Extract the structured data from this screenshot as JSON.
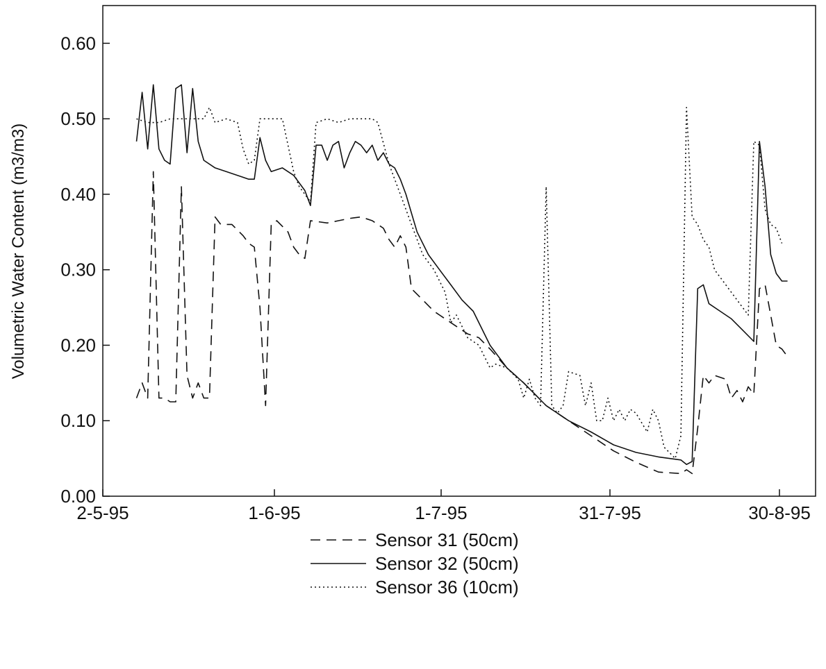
{
  "chart_data": {
    "type": "line",
    "title": "",
    "xlabel": "",
    "ylabel": "Volumetric Water Content (m3/m3)",
    "x_ticks": [
      "2-5-95",
      "1-6-95",
      "1-7-95",
      "31-7-95",
      "30-8-95"
    ],
    "y_ticks": [
      "0.00",
      "0.10",
      "0.20",
      "0.30",
      "0.40",
      "0.50",
      "0.60"
    ],
    "xlim": [
      "1995-05-02",
      "1995-09-06"
    ],
    "ylim": [
      0,
      0.65
    ],
    "grid": false,
    "legend_position": "bottom-center",
    "series": [
      {
        "name": "Sensor 31 (50cm)",
        "style": "dashed",
        "points": [
          [
            "1995-05-08",
            0.13
          ],
          [
            "1995-05-09",
            0.15
          ],
          [
            "1995-05-10",
            0.13
          ],
          [
            "1995-05-11",
            0.43
          ],
          [
            "1995-05-12",
            0.13
          ],
          [
            "1995-05-13",
            0.13
          ],
          [
            "1995-05-14",
            0.125
          ],
          [
            "1995-05-15",
            0.125
          ],
          [
            "1995-05-16",
            0.41
          ],
          [
            "1995-05-17",
            0.16
          ],
          [
            "1995-05-18",
            0.13
          ],
          [
            "1995-05-19",
            0.15
          ],
          [
            "1995-05-20",
            0.13
          ],
          [
            "1995-05-21",
            0.13
          ],
          [
            "1995-05-22",
            0.37
          ],
          [
            "1995-05-23",
            0.36
          ],
          [
            "1995-05-25",
            0.36
          ],
          [
            "1995-05-27",
            0.345
          ],
          [
            "1995-05-28",
            0.335
          ],
          [
            "1995-05-29",
            0.33
          ],
          [
            "1995-05-30",
            0.25
          ],
          [
            "1995-05-31",
            0.12
          ],
          [
            "1995-06-01",
            0.36
          ],
          [
            "1995-06-02",
            0.365
          ],
          [
            "1995-06-04",
            0.35
          ],
          [
            "1995-06-05",
            0.33
          ],
          [
            "1995-06-06",
            0.32
          ],
          [
            "1995-06-07",
            0.315
          ],
          [
            "1995-06-08",
            0.365
          ],
          [
            "1995-06-11",
            0.362
          ],
          [
            "1995-06-13",
            0.365
          ],
          [
            "1995-06-15",
            0.368
          ],
          [
            "1995-06-17",
            0.37
          ],
          [
            "1995-06-19",
            0.365
          ],
          [
            "1995-06-21",
            0.355
          ],
          [
            "1995-06-22",
            0.34
          ],
          [
            "1995-06-23",
            0.33
          ],
          [
            "1995-06-24",
            0.345
          ],
          [
            "1995-06-25",
            0.33
          ],
          [
            "1995-06-26",
            0.275
          ],
          [
            "1995-06-28",
            0.26
          ],
          [
            "1995-06-30",
            0.245
          ],
          [
            "1995-07-02",
            0.235
          ],
          [
            "1995-07-04",
            0.225
          ],
          [
            "1995-07-06",
            0.215
          ],
          [
            "1995-07-08",
            0.21
          ],
          [
            "1995-07-10",
            0.195
          ],
          [
            "1995-07-13",
            0.17
          ],
          [
            "1995-07-16",
            0.15
          ],
          [
            "1995-07-20",
            0.12
          ],
          [
            "1995-07-24",
            0.1
          ],
          [
            "1995-07-28",
            0.08
          ],
          [
            "1995-08-01",
            0.06
          ],
          [
            "1995-08-05",
            0.045
          ],
          [
            "1995-08-09",
            0.032
          ],
          [
            "1995-08-13",
            0.03
          ],
          [
            "1995-08-14",
            0.035
          ],
          [
            "1995-08-15",
            0.03
          ],
          [
            "1995-08-16",
            0.09
          ],
          [
            "1995-08-17",
            0.16
          ],
          [
            "1995-08-18",
            0.15
          ],
          [
            "1995-08-19",
            0.16
          ],
          [
            "1995-08-21",
            0.155
          ],
          [
            "1995-08-22",
            0.13
          ],
          [
            "1995-08-23",
            0.14
          ],
          [
            "1995-08-24",
            0.125
          ],
          [
            "1995-08-25",
            0.145
          ],
          [
            "1995-08-26",
            0.135
          ],
          [
            "1995-08-27",
            0.275
          ],
          [
            "1995-08-28",
            0.28
          ],
          [
            "1995-08-29",
            0.24
          ],
          [
            "1995-08-30",
            0.2
          ],
          [
            "1995-08-31",
            0.195
          ],
          [
            "1995-09-01",
            0.185
          ]
        ]
      },
      {
        "name": "Sensor 32 (50cm)",
        "style": "solid",
        "points": [
          [
            "1995-05-08",
            0.47
          ],
          [
            "1995-05-09",
            0.535
          ],
          [
            "1995-05-10",
            0.46
          ],
          [
            "1995-05-11",
            0.545
          ],
          [
            "1995-05-12",
            0.46
          ],
          [
            "1995-05-13",
            0.445
          ],
          [
            "1995-05-14",
            0.44
          ],
          [
            "1995-05-15",
            0.54
          ],
          [
            "1995-05-16",
            0.545
          ],
          [
            "1995-05-17",
            0.455
          ],
          [
            "1995-05-18",
            0.54
          ],
          [
            "1995-05-19",
            0.47
          ],
          [
            "1995-05-20",
            0.445
          ],
          [
            "1995-05-22",
            0.435
          ],
          [
            "1995-05-24",
            0.43
          ],
          [
            "1995-05-26",
            0.425
          ],
          [
            "1995-05-28",
            0.42
          ],
          [
            "1995-05-29",
            0.42
          ],
          [
            "1995-05-30",
            0.475
          ],
          [
            "1995-05-31",
            0.445
          ],
          [
            "1995-06-01",
            0.43
          ],
          [
            "1995-06-03",
            0.435
          ],
          [
            "1995-06-05",
            0.425
          ],
          [
            "1995-06-07",
            0.405
          ],
          [
            "1995-06-08",
            0.385
          ],
          [
            "1995-06-09",
            0.465
          ],
          [
            "1995-06-10",
            0.465
          ],
          [
            "1995-06-11",
            0.445
          ],
          [
            "1995-06-12",
            0.465
          ],
          [
            "1995-06-13",
            0.47
          ],
          [
            "1995-06-14",
            0.435
          ],
          [
            "1995-06-15",
            0.455
          ],
          [
            "1995-06-16",
            0.47
          ],
          [
            "1995-06-17",
            0.465
          ],
          [
            "1995-06-18",
            0.455
          ],
          [
            "1995-06-19",
            0.465
          ],
          [
            "1995-06-20",
            0.445
          ],
          [
            "1995-06-21",
            0.455
          ],
          [
            "1995-06-22",
            0.44
          ],
          [
            "1995-06-23",
            0.435
          ],
          [
            "1995-06-24",
            0.42
          ],
          [
            "1995-06-25",
            0.4
          ],
          [
            "1995-06-26",
            0.375
          ],
          [
            "1995-06-27",
            0.35
          ],
          [
            "1995-06-29",
            0.32
          ],
          [
            "1995-07-01",
            0.3
          ],
          [
            "1995-07-03",
            0.28
          ],
          [
            "1995-07-05",
            0.26
          ],
          [
            "1995-07-07",
            0.245
          ],
          [
            "1995-07-10",
            0.2
          ],
          [
            "1995-07-13",
            0.17
          ],
          [
            "1995-07-16",
            0.15
          ],
          [
            "1995-07-20",
            0.12
          ],
          [
            "1995-07-24",
            0.1
          ],
          [
            "1995-07-28",
            0.085
          ],
          [
            "1995-08-01",
            0.068
          ],
          [
            "1995-08-05",
            0.058
          ],
          [
            "1995-08-09",
            0.052
          ],
          [
            "1995-08-13",
            0.048
          ],
          [
            "1995-08-14",
            0.042
          ],
          [
            "1995-08-15",
            0.046
          ],
          [
            "1995-08-16",
            0.275
          ],
          [
            "1995-08-17",
            0.28
          ],
          [
            "1995-08-18",
            0.255
          ],
          [
            "1995-08-20",
            0.245
          ],
          [
            "1995-08-22",
            0.235
          ],
          [
            "1995-08-24",
            0.22
          ],
          [
            "1995-08-26",
            0.205
          ],
          [
            "1995-08-27",
            0.47
          ],
          [
            "1995-08-28",
            0.41
          ],
          [
            "1995-08-29",
            0.32
          ],
          [
            "1995-08-30",
            0.295
          ],
          [
            "1995-08-31",
            0.285
          ],
          [
            "1995-09-01",
            0.285
          ]
        ]
      },
      {
        "name": "Sensor 36 (10cm)",
        "style": "dotted",
        "points": [
          [
            "1995-05-08",
            0.5
          ],
          [
            "1995-05-10",
            0.495
          ],
          [
            "1995-05-12",
            0.495
          ],
          [
            "1995-05-14",
            0.5
          ],
          [
            "1995-05-16",
            0.5
          ],
          [
            "1995-05-18",
            0.5
          ],
          [
            "1995-05-20",
            0.5
          ],
          [
            "1995-05-21",
            0.515
          ],
          [
            "1995-05-22",
            0.495
          ],
          [
            "1995-05-24",
            0.5
          ],
          [
            "1995-05-26",
            0.495
          ],
          [
            "1995-05-27",
            0.46
          ],
          [
            "1995-05-28",
            0.44
          ],
          [
            "1995-05-29",
            0.445
          ],
          [
            "1995-05-30",
            0.5
          ],
          [
            "1995-06-01",
            0.5
          ],
          [
            "1995-06-03",
            0.5
          ],
          [
            "1995-06-05",
            0.43
          ],
          [
            "1995-06-06",
            0.41
          ],
          [
            "1995-06-07",
            0.4
          ],
          [
            "1995-06-08",
            0.39
          ],
          [
            "1995-06-09",
            0.495
          ],
          [
            "1995-06-11",
            0.5
          ],
          [
            "1995-06-13",
            0.495
          ],
          [
            "1995-06-15",
            0.5
          ],
          [
            "1995-06-17",
            0.5
          ],
          [
            "1995-06-19",
            0.5
          ],
          [
            "1995-06-20",
            0.495
          ],
          [
            "1995-06-22",
            0.44
          ],
          [
            "1995-06-24",
            0.4
          ],
          [
            "1995-06-26",
            0.36
          ],
          [
            "1995-06-28",
            0.32
          ],
          [
            "1995-06-30",
            0.3
          ],
          [
            "1995-07-02",
            0.27
          ],
          [
            "1995-07-03",
            0.23
          ],
          [
            "1995-07-04",
            0.24
          ],
          [
            "1995-07-05",
            0.225
          ],
          [
            "1995-07-06",
            0.21
          ],
          [
            "1995-07-08",
            0.2
          ],
          [
            "1995-07-10",
            0.17
          ],
          [
            "1995-07-11",
            0.175
          ],
          [
            "1995-07-13",
            0.17
          ],
          [
            "1995-07-15",
            0.155
          ],
          [
            "1995-07-16",
            0.13
          ],
          [
            "1995-07-17",
            0.155
          ],
          [
            "1995-07-18",
            0.13
          ],
          [
            "1995-07-19",
            0.12
          ],
          [
            "1995-07-20",
            0.41
          ],
          [
            "1995-07-21",
            0.12
          ],
          [
            "1995-07-22",
            0.11
          ],
          [
            "1995-07-23",
            0.12
          ],
          [
            "1995-07-24",
            0.165
          ],
          [
            "1995-07-26",
            0.16
          ],
          [
            "1995-07-27",
            0.12
          ],
          [
            "1995-07-28",
            0.15
          ],
          [
            "1995-07-29",
            0.1
          ],
          [
            "1995-07-30",
            0.1
          ],
          [
            "1995-07-31",
            0.13
          ],
          [
            "1995-08-01",
            0.1
          ],
          [
            "1995-08-02",
            0.115
          ],
          [
            "1995-08-03",
            0.1
          ],
          [
            "1995-08-04",
            0.115
          ],
          [
            "1995-08-05",
            0.11
          ],
          [
            "1995-08-07",
            0.085
          ],
          [
            "1995-08-08",
            0.115
          ],
          [
            "1995-08-09",
            0.1
          ],
          [
            "1995-08-10",
            0.065
          ],
          [
            "1995-08-12",
            0.05
          ],
          [
            "1995-08-13",
            0.08
          ],
          [
            "1995-08-14",
            0.515
          ],
          [
            "1995-08-15",
            0.37
          ],
          [
            "1995-08-16",
            0.36
          ],
          [
            "1995-08-17",
            0.34
          ],
          [
            "1995-08-18",
            0.33
          ],
          [
            "1995-08-19",
            0.3
          ],
          [
            "1995-08-20",
            0.29
          ],
          [
            "1995-08-21",
            0.28
          ],
          [
            "1995-08-22",
            0.27
          ],
          [
            "1995-08-23",
            0.26
          ],
          [
            "1995-08-24",
            0.25
          ],
          [
            "1995-08-25",
            0.24
          ],
          [
            "1995-08-26",
            0.47
          ],
          [
            "1995-08-27",
            0.465
          ],
          [
            "1995-08-28",
            0.38
          ],
          [
            "1995-08-29",
            0.36
          ],
          [
            "1995-08-30",
            0.355
          ],
          [
            "1995-08-31",
            0.335
          ]
        ]
      }
    ]
  }
}
